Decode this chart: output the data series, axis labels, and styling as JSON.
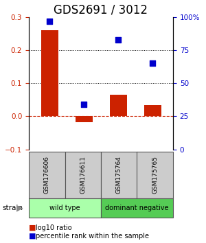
{
  "title": "GDS2691 / 3012",
  "samples": [
    "GSM176606",
    "GSM176611",
    "GSM175764",
    "GSM175765"
  ],
  "log10_ratio": [
    0.26,
    -0.018,
    0.065,
    0.035
  ],
  "percentile_rank": [
    97,
    34,
    83,
    65
  ],
  "bar_color": "#cc2200",
  "dot_color": "#0000cc",
  "left_ylim": [
    -0.1,
    0.3
  ],
  "right_ylim": [
    0,
    100
  ],
  "left_yticks": [
    -0.1,
    0.0,
    0.1,
    0.2,
    0.3
  ],
  "right_yticks": [
    0,
    25,
    50,
    75,
    100
  ],
  "right_yticklabels": [
    "0",
    "25",
    "50",
    "75",
    "100%"
  ],
  "groups": [
    {
      "label": "wild type",
      "samples": [
        0,
        1
      ],
      "color": "#aaffaa"
    },
    {
      "label": "dominant negative",
      "samples": [
        2,
        3
      ],
      "color": "#55cc55"
    }
  ],
  "strain_label": "strain",
  "legend_items": [
    {
      "color": "#cc2200",
      "label": "log10 ratio"
    },
    {
      "color": "#0000cc",
      "label": "percentile rank within the sample"
    }
  ],
  "bar_width": 0.5,
  "dot_size": 40,
  "title_fontsize": 12,
  "tick_fontsize": 7.5,
  "sample_box_color": "#cccccc",
  "sample_box_edgecolor": "#555555"
}
